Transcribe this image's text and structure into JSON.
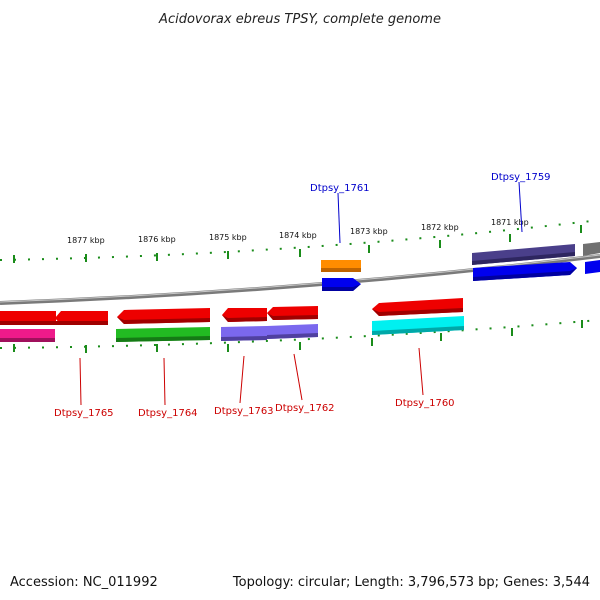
{
  "title": "Acidovorax ebreus TPSY, complete genome",
  "footer": {
    "accession": "Accession: NC_011992",
    "topology": "Topology: circular; Length: 3,796,573 bp; Genes: 3,544"
  },
  "ticks": [
    {
      "label": "1877 kbp"
    },
    {
      "label": "1876 kbp"
    },
    {
      "label": "1875 kbp"
    },
    {
      "label": "1874 kbp"
    },
    {
      "label": "1873 kbp"
    },
    {
      "label": "1872 kbp"
    },
    {
      "label": "1871 kbp"
    }
  ],
  "gene_labels": [
    {
      "name": "Dtpsy_1761",
      "color": "#0000cc"
    },
    {
      "name": "Dtpsy_1759",
      "color": "#0000cc"
    },
    {
      "name": "Dtpsy_1765",
      "color": "#cc0000"
    },
    {
      "name": "Dtpsy_1764",
      "color": "#cc0000"
    },
    {
      "name": "Dtpsy_1763",
      "color": "#cc0000"
    },
    {
      "name": "Dtpsy_1762",
      "color": "#cc0000"
    },
    {
      "name": "Dtpsy_1760",
      "color": "#cc0000"
    }
  ],
  "colors": {
    "backbone": "#808080",
    "tick": "#1a8c1a",
    "forward_gene": "#0000ee",
    "reverse_gene": "#ee0000"
  }
}
